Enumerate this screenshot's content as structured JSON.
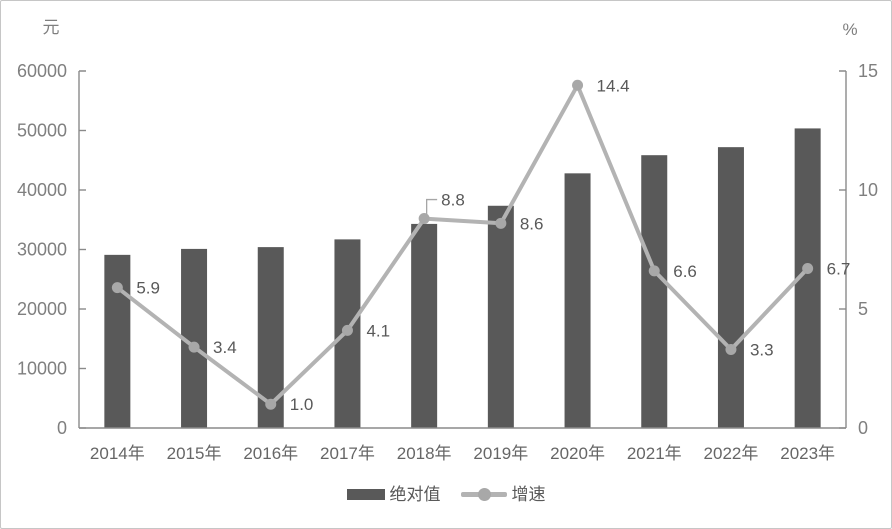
{
  "chart_data": {
    "type": "combo-bar-line",
    "categories": [
      "2014年",
      "2015年",
      "2016年",
      "2017年",
      "2018年",
      "2019年",
      "2020年",
      "2021年",
      "2022年",
      "2023年"
    ],
    "series": [
      {
        "name": "绝对值",
        "type": "bar",
        "axis": "left",
        "color": "#595959",
        "values": [
          29100,
          30100,
          30400,
          31700,
          34300,
          37350,
          42800,
          45850,
          47200,
          50350
        ]
      },
      {
        "name": "增速",
        "type": "line",
        "axis": "right",
        "color": "#b3b3b3",
        "marker_color": "#a8a8a8",
        "values": [
          5.9,
          3.4,
          1.0,
          4.1,
          8.8,
          8.6,
          14.4,
          6.6,
          3.3,
          6.7
        ],
        "point_labels": [
          "5.9",
          "3.4",
          "1.0",
          "4.1",
          "8.8",
          "8.6",
          "14.4",
          "6.6",
          "3.3",
          "6.7"
        ],
        "callout_points": [
          4
        ]
      }
    ],
    "axes": {
      "left": {
        "unit": "元",
        "min": 0,
        "max": 60000,
        "ticks": [
          0,
          10000,
          20000,
          30000,
          40000,
          50000,
          60000
        ]
      },
      "right": {
        "unit": "%",
        "min": 0,
        "max": 15,
        "ticks": [
          0,
          5,
          10,
          15
        ]
      }
    },
    "grid": false,
    "legend_position": "bottom",
    "axis_color": "#8a8a8a"
  }
}
